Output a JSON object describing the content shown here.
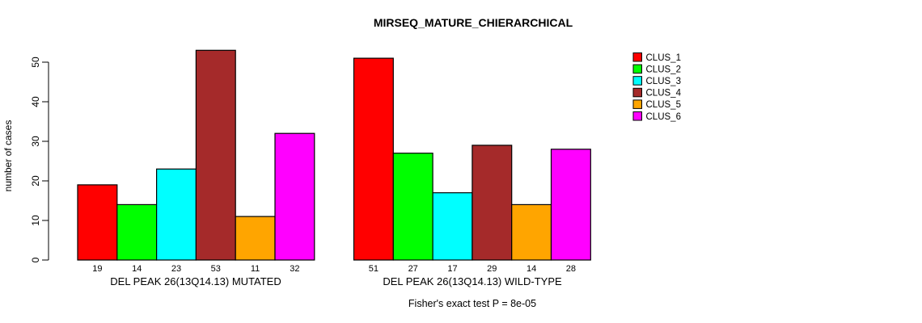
{
  "title": "MIRSEQ_MATURE_CHIERARCHICAL",
  "ylabel": "number of cases",
  "footer": "Fisher's exact test P = 8e-05",
  "chart_data": {
    "type": "bar",
    "title": "MIRSEQ_MATURE_CHIERARCHICAL",
    "xlabel": "",
    "ylabel": "number of cases",
    "ylim": [
      0,
      53
    ],
    "yticks": [
      0,
      10,
      20,
      30,
      40,
      50
    ],
    "grid": "off",
    "legend_position": "right",
    "axis_color": "#000000",
    "bar_border_color": "#000000",
    "groups": [
      {
        "label": "DEL PEAK 26(13Q14.13) MUTATED",
        "values": [
          19,
          14,
          23,
          53,
          11,
          32
        ]
      },
      {
        "label": "DEL PEAK 26(13Q14.13) WILD-TYPE",
        "values": [
          51,
          27,
          17,
          29,
          14,
          28
        ]
      }
    ],
    "series": [
      {
        "name": "CLUS_1",
        "color": "#FF0000"
      },
      {
        "name": "CLUS_2",
        "color": "#00FF00"
      },
      {
        "name": "CLUS_3",
        "color": "#00FFFF"
      },
      {
        "name": "CLUS_4",
        "color": "#A52A2A"
      },
      {
        "name": "CLUS_5",
        "color": "#FFA500"
      },
      {
        "name": "CLUS_6",
        "color": "#FF00FF"
      }
    ],
    "value_labels": {
      "mutated": [
        "19",
        "14",
        "23",
        "53",
        "11",
        "32"
      ],
      "wild_type": [
        "51",
        "27",
        "17",
        "29",
        "14",
        "28"
      ]
    }
  }
}
